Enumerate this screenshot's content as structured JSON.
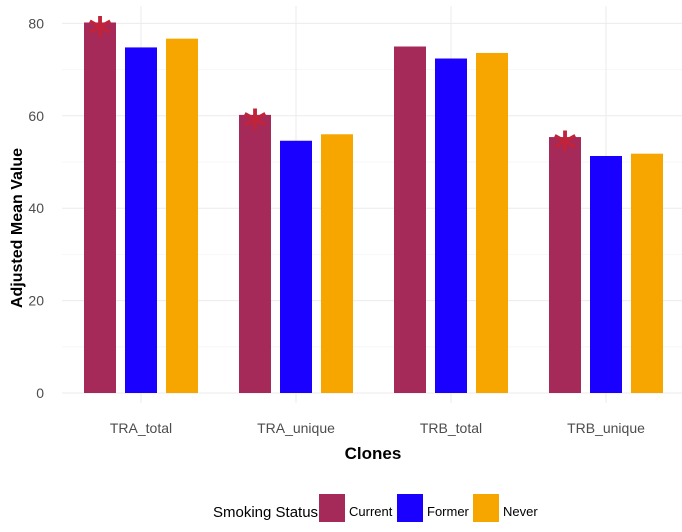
{
  "chart_data": {
    "type": "bar",
    "xlabel": "Clones",
    "ylabel": "Adjusted Mean Value",
    "categories": [
      "TRA_total",
      "TRA_unique",
      "TRB_total",
      "TRB_unique"
    ],
    "series": [
      {
        "name": "Current",
        "color": "#A52A5A",
        "values": [
          80.2,
          60.2,
          75.0,
          55.4
        ]
      },
      {
        "name": "Former",
        "color": "#1A00FF",
        "values": [
          74.8,
          54.6,
          72.4,
          51.3
        ]
      },
      {
        "name": "Never",
        "color": "#F7A600",
        "values": [
          76.7,
          56.0,
          73.6,
          51.8
        ]
      }
    ],
    "significance": [
      {
        "category": "TRA_total",
        "series": "Current",
        "symbol": "*"
      },
      {
        "category": "TRA_unique",
        "series": "Current",
        "symbol": "*"
      },
      {
        "category": "TRB_unique",
        "series": "Current",
        "symbol": "*"
      }
    ],
    "significance_color": "#C0233A",
    "yticks": [
      0,
      20,
      40,
      60,
      80
    ],
    "ylim": [
      0,
      82
    ],
    "grid": true,
    "legend": {
      "title": "Smoking Status",
      "position": "bottom"
    }
  }
}
